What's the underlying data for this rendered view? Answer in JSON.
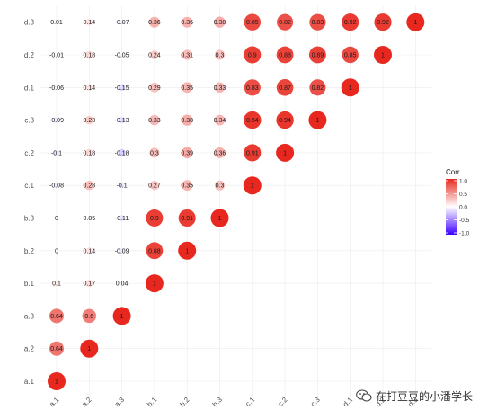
{
  "chart_data": {
    "type": "heatmap",
    "style": "circle-correlogram",
    "title": "",
    "xlabel": "",
    "ylabel": "",
    "variables": [
      "a.1",
      "a.2",
      "a.3",
      "b.1",
      "b.2",
      "b.3",
      "c.1",
      "c.2",
      "c.3",
      "d.1",
      "d.2",
      "d.3"
    ],
    "x_tick_labels": [
      "a.1",
      "a.2",
      "a.3",
      "b.1",
      "b.2",
      "b.3",
      "c.1",
      "c.2",
      "c.3",
      "d.1",
      "d.2",
      "d.3"
    ],
    "y_tick_labels": [
      "a.1",
      "a.2",
      "a.3",
      "b.1",
      "b.2",
      "b.3",
      "c.1",
      "c.2",
      "c.3",
      "d.1",
      "d.2",
      "d.3"
    ],
    "cells": [
      {
        "x": "a.1",
        "y": "a.1",
        "value": 1,
        "label": "1"
      },
      {
        "x": "a.1",
        "y": "a.2",
        "value": 0.64,
        "label": "0.64"
      },
      {
        "x": "a.2",
        "y": "a.2",
        "value": 1,
        "label": "1"
      },
      {
        "x": "a.1",
        "y": "a.3",
        "value": 0.64,
        "label": "0.64"
      },
      {
        "x": "a.2",
        "y": "a.3",
        "value": 0.6,
        "label": "0.6"
      },
      {
        "x": "a.3",
        "y": "a.3",
        "value": 1,
        "label": "1"
      },
      {
        "x": "a.1",
        "y": "b.1",
        "value": 0.1,
        "label": "0.1"
      },
      {
        "x": "a.2",
        "y": "b.1",
        "value": 0.17,
        "label": "0.17"
      },
      {
        "x": "a.3",
        "y": "b.1",
        "value": 0.04,
        "label": "0.04"
      },
      {
        "x": "b.1",
        "y": "b.1",
        "value": 1,
        "label": "1"
      },
      {
        "x": "a.1",
        "y": "b.2",
        "value": 0,
        "label": "0"
      },
      {
        "x": "a.2",
        "y": "b.2",
        "value": 0.14,
        "label": "0.14"
      },
      {
        "x": "a.3",
        "y": "b.2",
        "value": -0.09,
        "label": "-0.09"
      },
      {
        "x": "b.1",
        "y": "b.2",
        "value": 0.88,
        "label": "0.88"
      },
      {
        "x": "b.2",
        "y": "b.2",
        "value": 1,
        "label": "1"
      },
      {
        "x": "a.1",
        "y": "b.3",
        "value": 0,
        "label": "0"
      },
      {
        "x": "a.2",
        "y": "b.3",
        "value": 0.05,
        "label": "0.05"
      },
      {
        "x": "a.3",
        "y": "b.3",
        "value": -0.11,
        "label": "-0.11"
      },
      {
        "x": "b.1",
        "y": "b.3",
        "value": 0.9,
        "label": "0.9"
      },
      {
        "x": "b.2",
        "y": "b.3",
        "value": 0.91,
        "label": "0.91"
      },
      {
        "x": "b.3",
        "y": "b.3",
        "value": 1,
        "label": "1"
      },
      {
        "x": "a.1",
        "y": "c.1",
        "value": -0.08,
        "label": "-0.08"
      },
      {
        "x": "a.2",
        "y": "c.1",
        "value": 0.28,
        "label": "0.28"
      },
      {
        "x": "a.3",
        "y": "c.1",
        "value": -0.1,
        "label": "-0.1"
      },
      {
        "x": "b.1",
        "y": "c.1",
        "value": 0.27,
        "label": "0.27"
      },
      {
        "x": "b.2",
        "y": "c.1",
        "value": 0.35,
        "label": "0.35"
      },
      {
        "x": "b.3",
        "y": "c.1",
        "value": 0.3,
        "label": "0.3"
      },
      {
        "x": "c.1",
        "y": "c.1",
        "value": 1,
        "label": "1"
      },
      {
        "x": "a.1",
        "y": "c.2",
        "value": -0.1,
        "label": "-0.1"
      },
      {
        "x": "a.2",
        "y": "c.2",
        "value": 0.18,
        "label": "0.18"
      },
      {
        "x": "a.3",
        "y": "c.2",
        "value": -0.18,
        "label": "-0.18"
      },
      {
        "x": "b.1",
        "y": "c.2",
        "value": 0.3,
        "label": "0.3"
      },
      {
        "x": "b.2",
        "y": "c.2",
        "value": 0.39,
        "label": "0.39"
      },
      {
        "x": "b.3",
        "y": "c.2",
        "value": 0.36,
        "label": "0.36"
      },
      {
        "x": "c.1",
        "y": "c.2",
        "value": 0.91,
        "label": "0.91"
      },
      {
        "x": "c.2",
        "y": "c.2",
        "value": 1,
        "label": "1"
      },
      {
        "x": "a.1",
        "y": "c.3",
        "value": -0.09,
        "label": "-0.09"
      },
      {
        "x": "a.2",
        "y": "c.3",
        "value": 0.23,
        "label": "0.23"
      },
      {
        "x": "a.3",
        "y": "c.3",
        "value": -0.13,
        "label": "-0.13"
      },
      {
        "x": "b.1",
        "y": "c.3",
        "value": 0.33,
        "label": "0.33"
      },
      {
        "x": "b.2",
        "y": "c.3",
        "value": 0.38,
        "label": "0.38"
      },
      {
        "x": "b.3",
        "y": "c.3",
        "value": 0.34,
        "label": "0.34"
      },
      {
        "x": "c.1",
        "y": "c.3",
        "value": 0.94,
        "label": "0.94"
      },
      {
        "x": "c.2",
        "y": "c.3",
        "value": 0.94,
        "label": "0.94"
      },
      {
        "x": "c.3",
        "y": "c.3",
        "value": 1,
        "label": "1"
      },
      {
        "x": "a.1",
        "y": "d.1",
        "value": -0.06,
        "label": "-0.06"
      },
      {
        "x": "a.2",
        "y": "d.1",
        "value": 0.14,
        "label": "0.14"
      },
      {
        "x": "a.3",
        "y": "d.1",
        "value": -0.15,
        "label": "-0.15"
      },
      {
        "x": "b.1",
        "y": "d.1",
        "value": 0.29,
        "label": "0.29"
      },
      {
        "x": "b.2",
        "y": "d.1",
        "value": 0.35,
        "label": "0.35"
      },
      {
        "x": "b.3",
        "y": "d.1",
        "value": 0.33,
        "label": "0.33"
      },
      {
        "x": "c.1",
        "y": "d.1",
        "value": 0.83,
        "label": "0.83"
      },
      {
        "x": "c.2",
        "y": "d.1",
        "value": 0.87,
        "label": "0.87"
      },
      {
        "x": "c.3",
        "y": "d.1",
        "value": 0.82,
        "label": "0.82"
      },
      {
        "x": "d.1",
        "y": "d.1",
        "value": 1,
        "label": "1"
      },
      {
        "x": "a.1",
        "y": "d.2",
        "value": -0.01,
        "label": "-0.01"
      },
      {
        "x": "a.2",
        "y": "d.2",
        "value": 0.18,
        "label": "0.18"
      },
      {
        "x": "a.3",
        "y": "d.2",
        "value": -0.05,
        "label": "-0.05"
      },
      {
        "x": "b.1",
        "y": "d.2",
        "value": 0.24,
        "label": "0.24"
      },
      {
        "x": "b.2",
        "y": "d.2",
        "value": 0.31,
        "label": "0.31"
      },
      {
        "x": "b.3",
        "y": "d.2",
        "value": 0.3,
        "label": "0.3"
      },
      {
        "x": "c.1",
        "y": "d.2",
        "value": 0.9,
        "label": "0.9"
      },
      {
        "x": "c.2",
        "y": "d.2",
        "value": 0.88,
        "label": "0.88"
      },
      {
        "x": "c.3",
        "y": "d.2",
        "value": 0.89,
        "label": "0.89"
      },
      {
        "x": "d.1",
        "y": "d.2",
        "value": 0.85,
        "label": "0.85"
      },
      {
        "x": "d.2",
        "y": "d.2",
        "value": 1,
        "label": "1"
      },
      {
        "x": "a.1",
        "y": "d.3",
        "value": 0.01,
        "label": "0.01"
      },
      {
        "x": "a.2",
        "y": "d.3",
        "value": 0.14,
        "label": "0.14"
      },
      {
        "x": "a.3",
        "y": "d.3",
        "value": -0.07,
        "label": "-0.07"
      },
      {
        "x": "b.1",
        "y": "d.3",
        "value": 0.36,
        "label": "0.36"
      },
      {
        "x": "b.2",
        "y": "d.3",
        "value": 0.36,
        "label": "0.36"
      },
      {
        "x": "b.3",
        "y": "d.3",
        "value": 0.38,
        "label": "0.38"
      },
      {
        "x": "c.1",
        "y": "d.3",
        "value": 0.85,
        "label": "0.85"
      },
      {
        "x": "c.2",
        "y": "d.3",
        "value": 0.82,
        "label": "0.82"
      },
      {
        "x": "c.3",
        "y": "d.3",
        "value": 0.83,
        "label": "0.83"
      },
      {
        "x": "d.1",
        "y": "d.3",
        "value": 0.92,
        "label": "0.92"
      },
      {
        "x": "d.2",
        "y": "d.3",
        "value": 0.92,
        "label": "0.92"
      },
      {
        "x": "d.3",
        "y": "d.3",
        "value": 1,
        "label": "1"
      }
    ],
    "color_scale": {
      "low": "#3d00ff",
      "mid": "#ffffff",
      "high": "#e8281e",
      "range": [
        -1,
        1
      ]
    },
    "legend": {
      "title": "Corr",
      "ticks": [
        "1.0",
        "0.5",
        "0.0",
        "-0.5",
        "-1.0"
      ],
      "position": "right"
    },
    "grid": true
  },
  "watermark": {
    "text": "在打豆豆的小潘学长",
    "icon": "wechat-icon"
  }
}
